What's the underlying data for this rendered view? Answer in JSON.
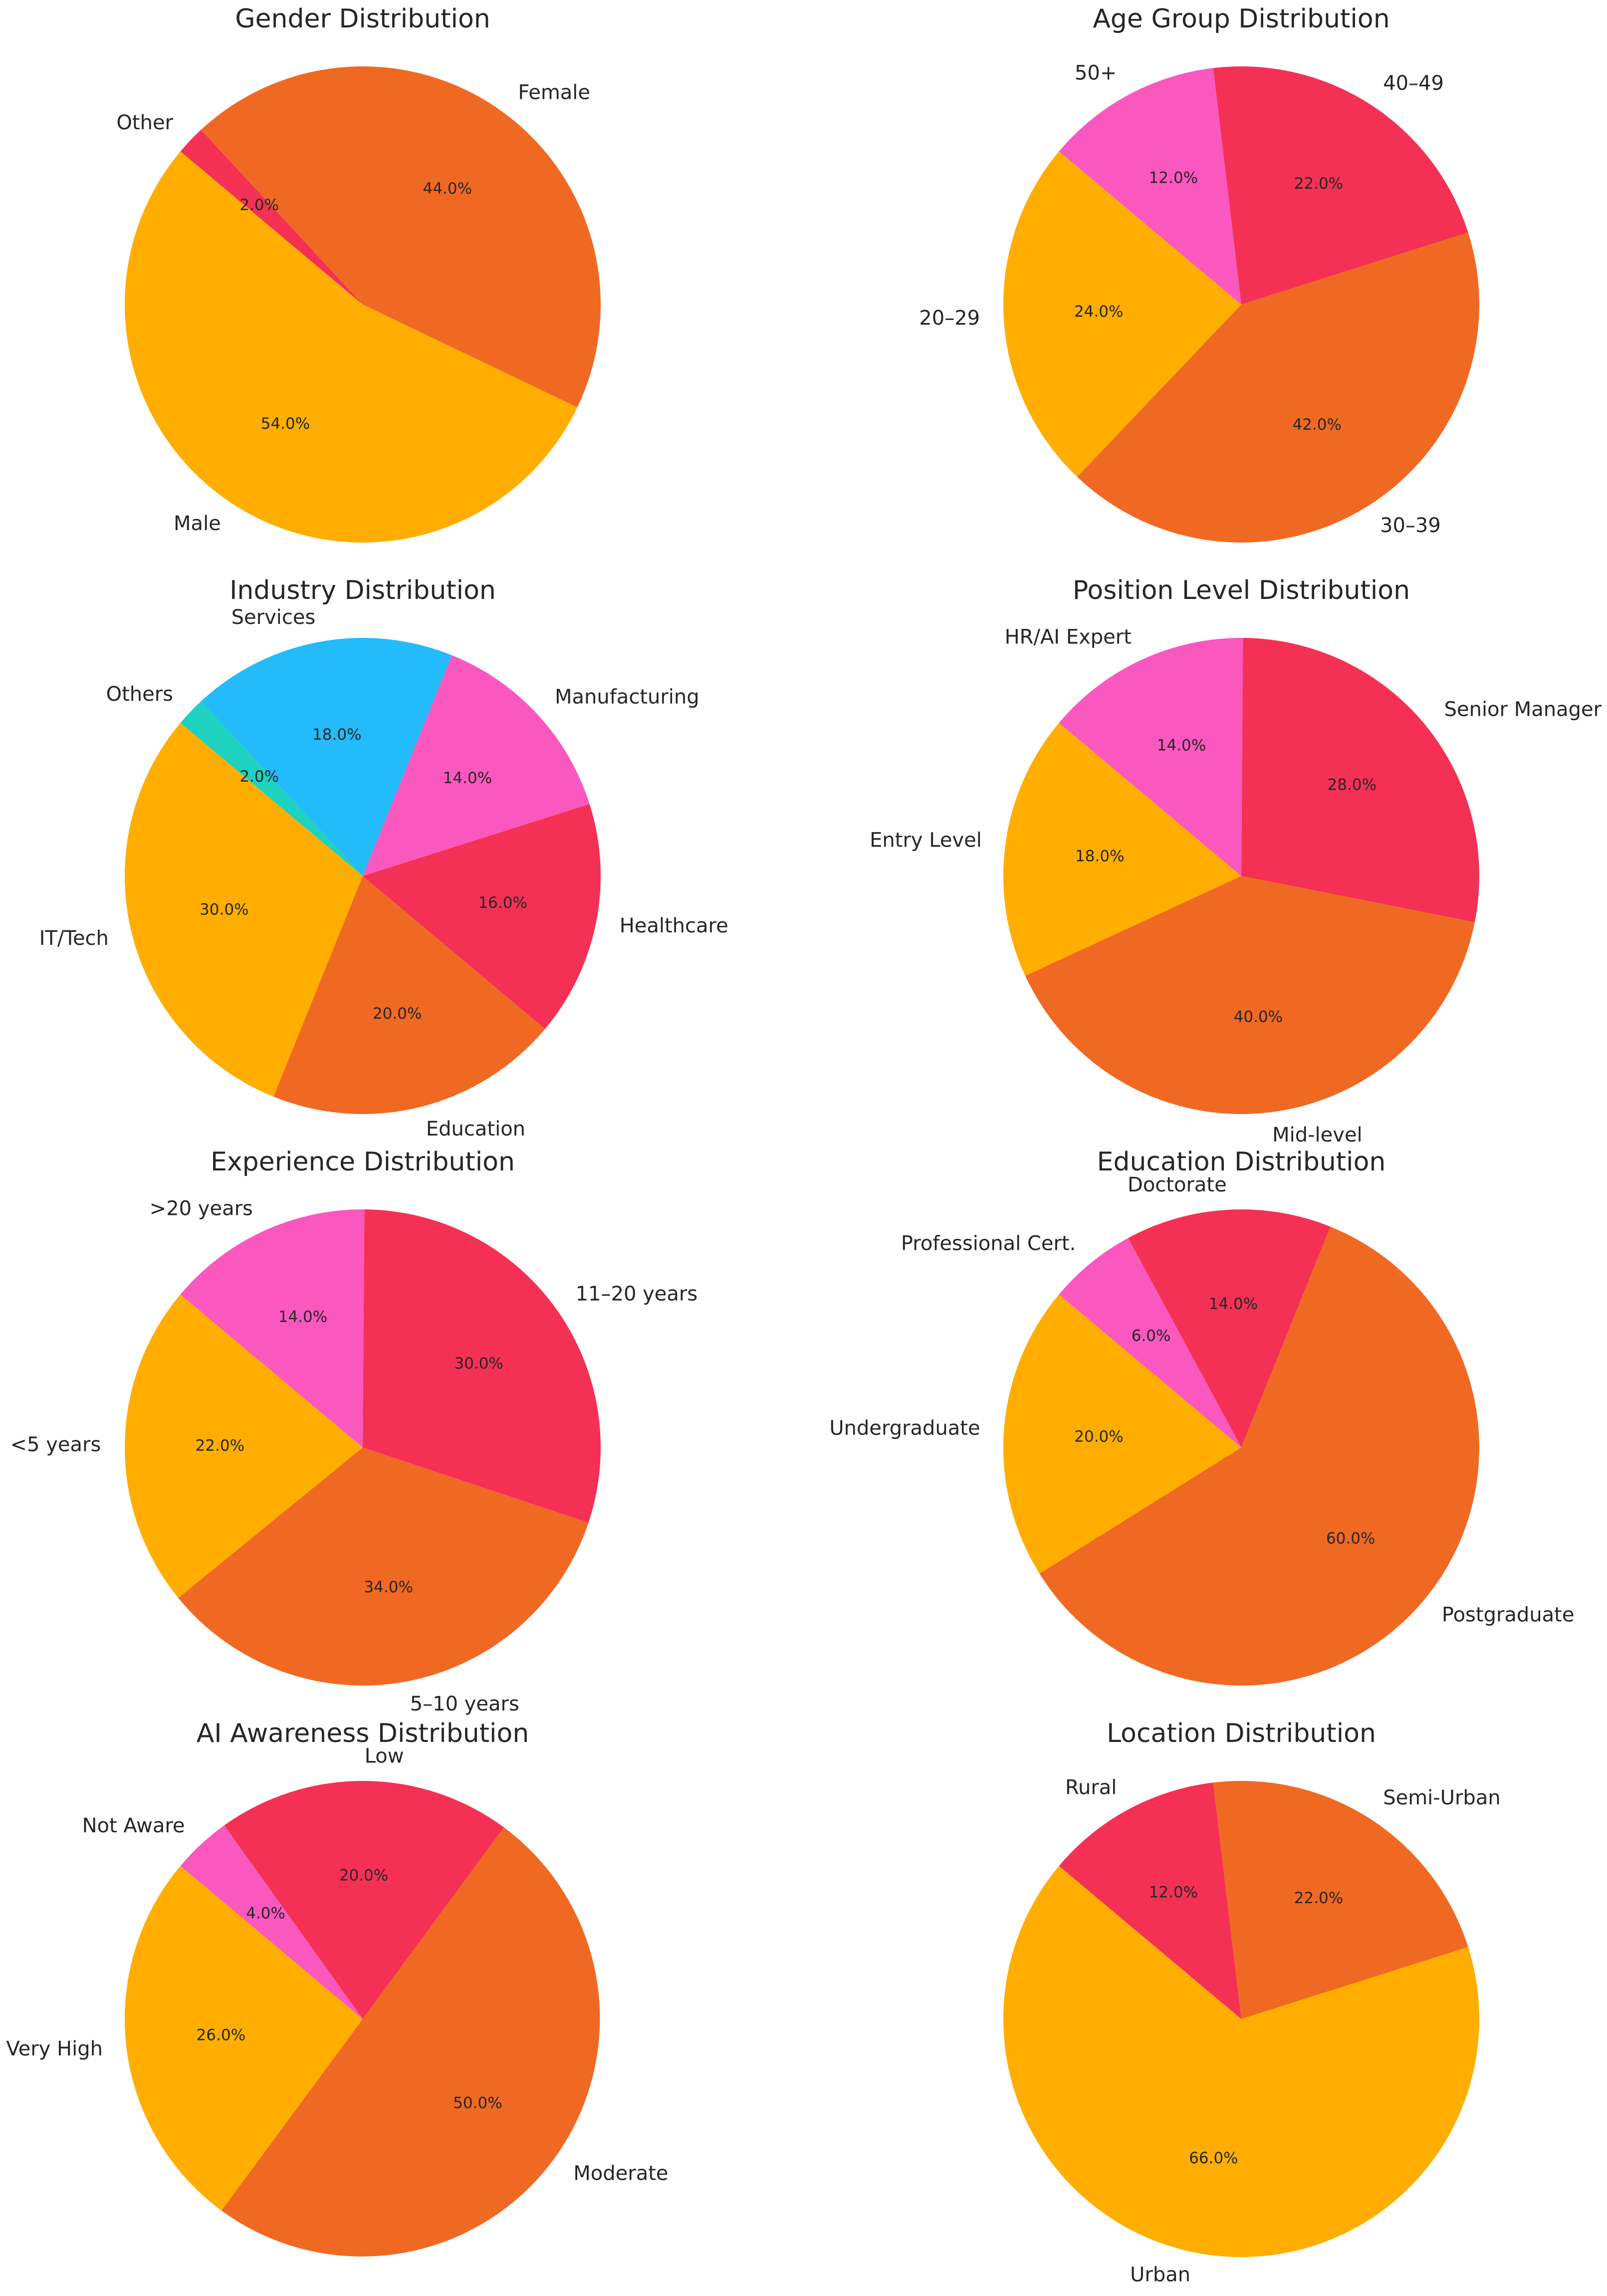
{
  "chart_data": [
    {
      "type": "pie",
      "title": "Gender Distribution",
      "start_angle": 140,
      "slices": [
        {
          "label": "Male",
          "value": 54.0,
          "color": "#FFAE00"
        },
        {
          "label": "Female",
          "value": 44.0,
          "color": "#F06923"
        },
        {
          "label": "Other",
          "value": 2.0,
          "color": "#F43154"
        }
      ]
    },
    {
      "type": "pie",
      "title": "Age Group Distribution",
      "start_angle": 140,
      "slices": [
        {
          "label": "20–29",
          "value": 24.0,
          "color": "#FFAE00"
        },
        {
          "label": "30–39",
          "value": 42.0,
          "color": "#F06923"
        },
        {
          "label": "40–49",
          "value": 22.0,
          "color": "#F43154"
        },
        {
          "label": "50+",
          "value": 12.0,
          "color": "#FA58BF"
        }
      ]
    },
    {
      "type": "pie",
      "title": "Industry Distribution",
      "start_angle": 140,
      "slices": [
        {
          "label": "IT/Tech",
          "value": 30.0,
          "color": "#FFAE00"
        },
        {
          "label": "Education",
          "value": 20.0,
          "color": "#F06923"
        },
        {
          "label": "Healthcare",
          "value": 16.0,
          "color": "#F43154"
        },
        {
          "label": "Manufacturing",
          "value": 14.0,
          "color": "#FA58BF"
        },
        {
          "label": "Services",
          "value": 18.0,
          "color": "#23BBFA"
        },
        {
          "label": "Others",
          "value": 2.0,
          "color": "#1ED2BF"
        }
      ]
    },
    {
      "type": "pie",
      "title": "Position Level Distribution",
      "start_angle": 140,
      "slices": [
        {
          "label": "Entry Level",
          "value": 18.0,
          "color": "#FFAE00"
        },
        {
          "label": "Mid-level",
          "value": 40.0,
          "color": "#F06923"
        },
        {
          "label": "Senior Manager",
          "value": 28.0,
          "color": "#F43154"
        },
        {
          "label": "HR/AI Expert",
          "value": 14.0,
          "color": "#FA58BF"
        }
      ]
    },
    {
      "type": "pie",
      "title": "Experience Distribution",
      "start_angle": 140,
      "slices": [
        {
          "label": "<5 years",
          "value": 22.0,
          "color": "#FFAE00"
        },
        {
          "label": "5–10 years",
          "value": 34.0,
          "color": "#F06923"
        },
        {
          "label": "11–20 years",
          "value": 30.0,
          "color": "#F43154"
        },
        {
          "label": ">20 years",
          "value": 14.0,
          "color": "#FA58BF"
        }
      ]
    },
    {
      "type": "pie",
      "title": "Education Distribution",
      "start_angle": 140,
      "slices": [
        {
          "label": "Undergraduate",
          "value": 20.0,
          "color": "#FFAE00"
        },
        {
          "label": "Postgraduate",
          "value": 60.0,
          "color": "#F06923"
        },
        {
          "label": "Doctorate",
          "value": 14.0,
          "color": "#F43154"
        },
        {
          "label": "Professional Cert.",
          "value": 6.0,
          "color": "#FA58BF"
        }
      ]
    },
    {
      "type": "pie",
      "title": "AI Awareness Distribution",
      "start_angle": 140,
      "slices": [
        {
          "label": "Very High",
          "value": 26.0,
          "color": "#FFAE00"
        },
        {
          "label": "Moderate",
          "value": 50.0,
          "color": "#F06923"
        },
        {
          "label": "Low",
          "value": 20.0,
          "color": "#F43154"
        },
        {
          "label": "Not Aware",
          "value": 4.0,
          "color": "#FA58BF"
        }
      ]
    },
    {
      "type": "pie",
      "title": "Location Distribution",
      "start_angle": 140,
      "slices": [
        {
          "label": "Urban",
          "value": 66.0,
          "color": "#FFAE00"
        },
        {
          "label": "Semi-Urban",
          "value": 22.0,
          "color": "#F06923"
        },
        {
          "label": "Rural",
          "value": 12.0,
          "color": "#F43154"
        }
      ]
    }
  ]
}
